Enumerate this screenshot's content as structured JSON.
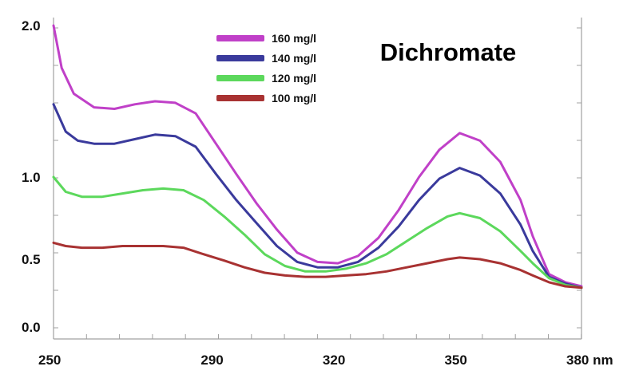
{
  "chart_data": {
    "type": "line",
    "title": "Dichromate",
    "x_unit": "nm",
    "xlim": [
      250,
      380
    ],
    "x_ticks": [
      250,
      290,
      320,
      350,
      380
    ],
    "x_tick_labels": [
      "250",
      "290",
      "320",
      "350",
      "380 nm"
    ],
    "y_ticks": [
      0.0,
      0.5,
      1.0,
      2.0
    ],
    "y_tick_labels": [
      "0.0",
      "0.5",
      "1.0",
      "2.0"
    ],
    "legend_position": "top-center",
    "grid": false,
    "series": [
      {
        "name": "160 mg/l",
        "color": "#c040c8",
        "points": [
          [
            250,
            2.0
          ],
          [
            252,
            1.72
          ],
          [
            255,
            1.55
          ],
          [
            260,
            1.46
          ],
          [
            265,
            1.45
          ],
          [
            270,
            1.48
          ],
          [
            275,
            1.5
          ],
          [
            280,
            1.49
          ],
          [
            285,
            1.42
          ],
          [
            290,
            1.22
          ],
          [
            295,
            1.02
          ],
          [
            300,
            0.84
          ],
          [
            305,
            0.68
          ],
          [
            310,
            0.54
          ],
          [
            315,
            0.48
          ],
          [
            320,
            0.47
          ],
          [
            325,
            0.52
          ],
          [
            330,
            0.63
          ],
          [
            335,
            0.8
          ],
          [
            340,
            1.0
          ],
          [
            345,
            1.18
          ],
          [
            350,
            1.29
          ],
          [
            355,
            1.24
          ],
          [
            360,
            1.1
          ],
          [
            365,
            0.86
          ],
          [
            368,
            0.64
          ],
          [
            372,
            0.39
          ],
          [
            376,
            0.33
          ],
          [
            380,
            0.3
          ]
        ]
      },
      {
        "name": "140 mg/l",
        "color": "#3a3a9c",
        "points": [
          [
            250,
            1.48
          ],
          [
            253,
            1.3
          ],
          [
            256,
            1.24
          ],
          [
            260,
            1.22
          ],
          [
            265,
            1.22
          ],
          [
            270,
            1.25
          ],
          [
            275,
            1.28
          ],
          [
            280,
            1.27
          ],
          [
            285,
            1.2
          ],
          [
            290,
            1.02
          ],
          [
            295,
            0.86
          ],
          [
            300,
            0.72
          ],
          [
            305,
            0.58
          ],
          [
            310,
            0.48
          ],
          [
            315,
            0.44
          ],
          [
            320,
            0.44
          ],
          [
            325,
            0.48
          ],
          [
            330,
            0.57
          ],
          [
            335,
            0.7
          ],
          [
            340,
            0.86
          ],
          [
            345,
            0.99
          ],
          [
            350,
            1.06
          ],
          [
            355,
            1.01
          ],
          [
            360,
            0.9
          ],
          [
            365,
            0.71
          ],
          [
            368,
            0.55
          ],
          [
            372,
            0.37
          ],
          [
            376,
            0.32
          ],
          [
            380,
            0.29
          ]
        ]
      },
      {
        "name": "120 mg/l",
        "color": "#5cd85c",
        "points": [
          [
            250,
            1.0
          ],
          [
            253,
            0.91
          ],
          [
            257,
            0.88
          ],
          [
            262,
            0.88
          ],
          [
            267,
            0.9
          ],
          [
            272,
            0.92
          ],
          [
            277,
            0.93
          ],
          [
            282,
            0.92
          ],
          [
            287,
            0.86
          ],
          [
            292,
            0.76
          ],
          [
            297,
            0.65
          ],
          [
            302,
            0.53
          ],
          [
            307,
            0.45
          ],
          [
            312,
            0.41
          ],
          [
            317,
            0.41
          ],
          [
            322,
            0.43
          ],
          [
            327,
            0.47
          ],
          [
            332,
            0.53
          ],
          [
            337,
            0.61
          ],
          [
            342,
            0.69
          ],
          [
            347,
            0.76
          ],
          [
            350,
            0.78
          ],
          [
            355,
            0.75
          ],
          [
            360,
            0.67
          ],
          [
            365,
            0.55
          ],
          [
            368,
            0.47
          ],
          [
            372,
            0.36
          ],
          [
            376,
            0.31
          ],
          [
            380,
            0.29
          ]
        ]
      },
      {
        "name": "100 mg/l",
        "color": "#a83232",
        "points": [
          [
            250,
            0.6
          ],
          [
            253,
            0.58
          ],
          [
            257,
            0.57
          ],
          [
            262,
            0.57
          ],
          [
            267,
            0.58
          ],
          [
            272,
            0.58
          ],
          [
            277,
            0.58
          ],
          [
            282,
            0.57
          ],
          [
            287,
            0.53
          ],
          [
            292,
            0.49
          ],
          [
            297,
            0.44
          ],
          [
            302,
            0.4
          ],
          [
            307,
            0.38
          ],
          [
            312,
            0.37
          ],
          [
            317,
            0.37
          ],
          [
            322,
            0.38
          ],
          [
            327,
            0.39
          ],
          [
            332,
            0.41
          ],
          [
            337,
            0.44
          ],
          [
            342,
            0.47
          ],
          [
            347,
            0.5
          ],
          [
            350,
            0.51
          ],
          [
            355,
            0.5
          ],
          [
            360,
            0.47
          ],
          [
            365,
            0.42
          ],
          [
            368,
            0.38
          ],
          [
            372,
            0.33
          ],
          [
            376,
            0.3
          ],
          [
            380,
            0.29
          ]
        ]
      }
    ]
  }
}
